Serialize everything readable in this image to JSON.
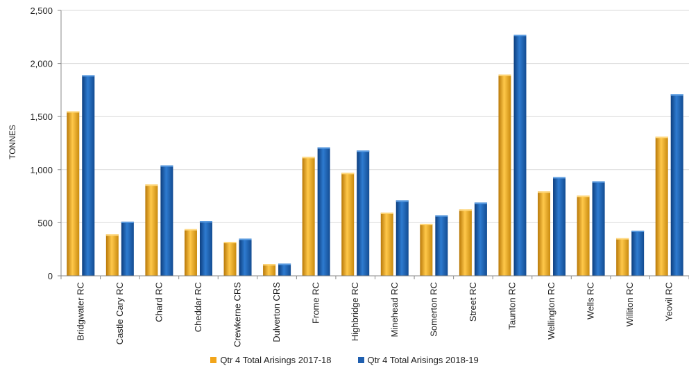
{
  "chart_data": {
    "type": "bar",
    "title": "",
    "xlabel": "",
    "ylabel": "TONNES",
    "ylim": [
      0,
      2500
    ],
    "yticks": [
      0,
      500,
      1000,
      1500,
      2000,
      2500
    ],
    "ytick_labels": [
      "0",
      "500",
      "1,000",
      "1,500",
      "2,000",
      "2,500"
    ],
    "grid": true,
    "legend_position": "bottom",
    "categories": [
      "Bridgwater RC",
      "Castle Cary RC",
      "Chard RC",
      "Cheddar RC",
      "Crewkerne CRS",
      "Dulverton CRS",
      "Frome RC",
      "Highbridge RC",
      "Minehead RC",
      "Somerton RC",
      "Street RC",
      "Taunton RC",
      "Wellington RC",
      "Wells RC",
      "Williton RC",
      "Yeovil RC"
    ],
    "series": [
      {
        "name": "Qtr 4  Total Arisings 2017-18",
        "color": "#F2A51A",
        "values": [
          1550,
          390,
          860,
          440,
          320,
          110,
          1120,
          970,
          595,
          490,
          625,
          1895,
          795,
          755,
          355,
          1310
        ]
      },
      {
        "name": "Qtr 4  Total Arisings 2018-19",
        "color": "#1F5FAF",
        "values": [
          1890,
          510,
          1040,
          515,
          350,
          115,
          1210,
          1180,
          710,
          570,
          690,
          2270,
          930,
          890,
          425,
          1710
        ]
      }
    ]
  }
}
